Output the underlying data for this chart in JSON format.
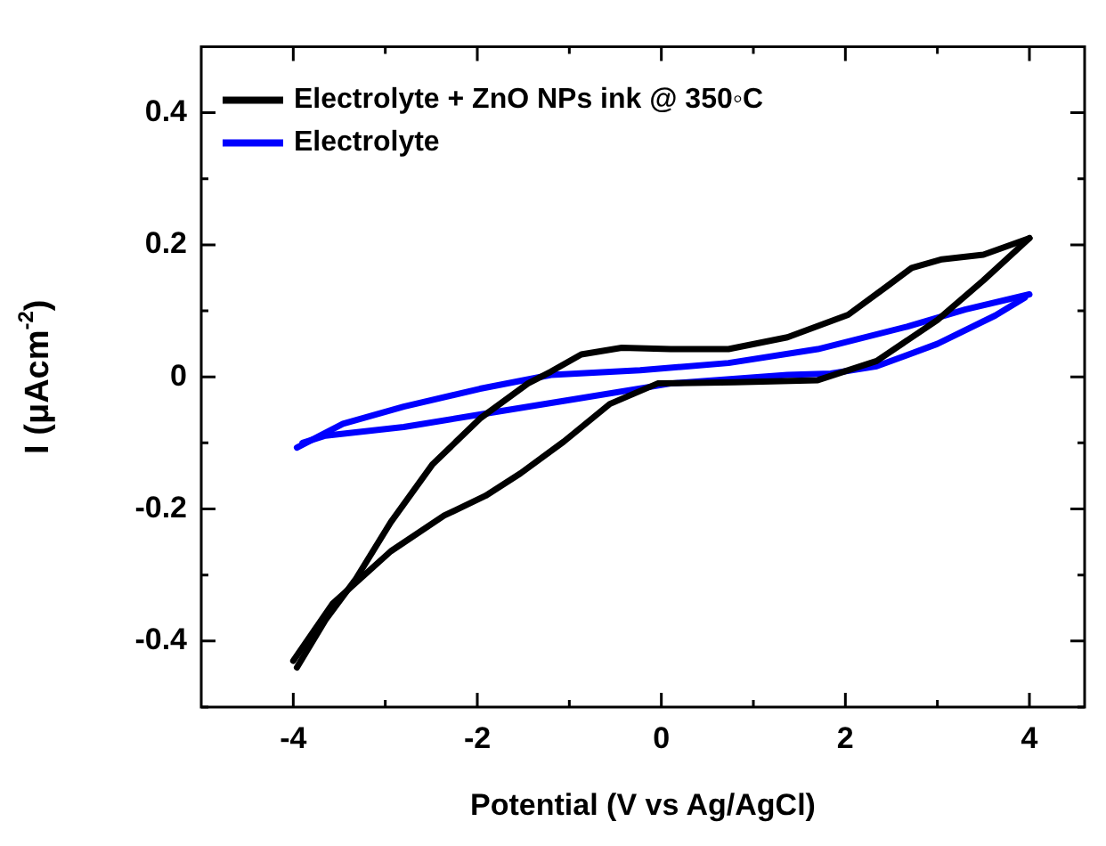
{
  "chart_data": {
    "type": "line",
    "xlabel": "Potential (V vs Ag/AgCl)",
    "ylabel": "I (μAcm$^{-2}$)",
    "legend": "top left",
    "xlim": [
      -5,
      4.6
    ],
    "ylim": [
      -0.5,
      0.5
    ],
    "xticks": [
      -4,
      {
        "value": -3,
        "label": null
      },
      -2,
      {
        "value": -1,
        "label": null
      },
      0,
      {
        "value": 1,
        "label": null
      },
      2,
      {
        "value": 3,
        "label": null
      },
      4
    ],
    "yticks": [
      {
        "value": -0.5,
        "label": null
      },
      -0.4,
      {
        "value": -0.3,
        "label": null
      },
      -0.2,
      {
        "value": -0.1,
        "label": null
      },
      0,
      {
        "value": 0.1,
        "label": null
      },
      0.2,
      {
        "value": 0.3,
        "label": null
      },
      0.4,
      {
        "value": 0.5,
        "label": null
      }
    ],
    "series": [
      {
        "name": "Electrolyte + ZnO NPs ink @ 350◦C",
        "color": "#000000",
        "x": [
          4,
          3.5,
          3.05,
          2.72,
          2.47,
          2.03,
          1.37,
          0.73,
          0.1,
          -0.43,
          -0.87,
          -1.2,
          -1.45,
          -1.97,
          -2.49,
          -2.94,
          -3.32,
          -3.65,
          -3.96
        ],
        "values": [
          0.21,
          0.185,
          0.178,
          0.165,
          0.139,
          0.094,
          0.06,
          0.042,
          0.042,
          0.044,
          0.034,
          0.008,
          -0.01,
          -0.063,
          -0.133,
          -0.22,
          -0.306,
          -0.368,
          -0.44
        ]
      },
      {
        "color": "#000000",
        "x": [
          -4,
          -3.57,
          -2.94,
          -2.36,
          -1.91,
          -1.53,
          -1.06,
          -0.56,
          -0.04,
          0.8,
          1.7,
          2.34,
          3,
          3.5,
          4
        ],
        "values": [
          -0.43,
          -0.343,
          -0.264,
          -0.21,
          -0.18,
          -0.146,
          -0.098,
          -0.041,
          -0.01,
          -0.008,
          -0.005,
          0.024,
          0.086,
          0.146,
          0.21
        ]
      },
      {
        "name": "Electrolyte",
        "color": "#0000ff",
        "x": [
          4,
          3.3,
          2.67,
          1.7,
          0.73,
          -0.23,
          -1.2,
          -1.97,
          -2.8,
          -3.46,
          -3.96
        ],
        "values": [
          0.125,
          0.102,
          0.076,
          0.042,
          0.021,
          0.01,
          0.003,
          -0.018,
          -0.045,
          -0.071,
          -0.107
        ]
      },
      {
        "color": "#0000ff",
        "x": [
          -3.9,
          -3.65,
          -2.8,
          -1.84,
          -0.87,
          0.1,
          1.37,
          1.84,
          2.34,
          3,
          3.63,
          3.95
        ],
        "values": [
          -0.1,
          -0.089,
          -0.076,
          -0.054,
          -0.032,
          -0.01,
          0.003,
          0.005,
          0.016,
          0.05,
          0.093,
          0.12
        ]
      }
    ]
  }
}
